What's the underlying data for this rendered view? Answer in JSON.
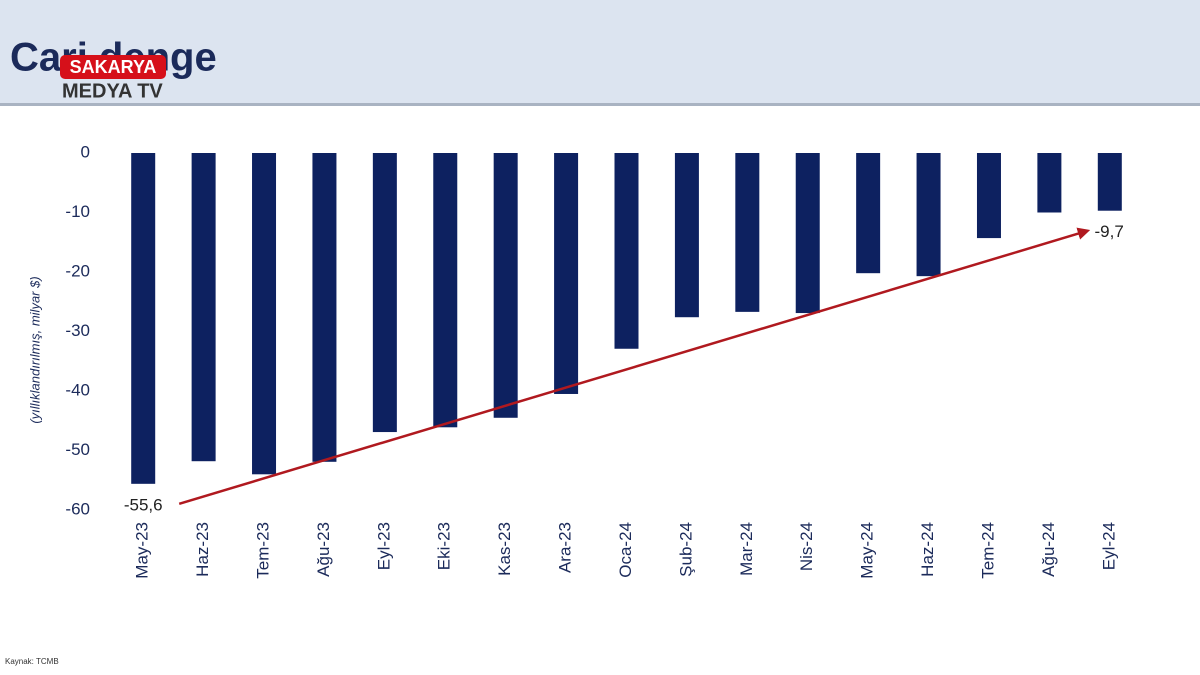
{
  "chart_data": {
    "type": "bar",
    "title": "Cari denge",
    "y_label": "(yıllıklandırılmış, milyar $)",
    "source": "Kaynak: TCMB",
    "categories": [
      "May-23",
      "Haz-23",
      "Tem-23",
      "Ağu-23",
      "Eyl-23",
      "Eki-23",
      "Kas-23",
      "Ara-23",
      "Oca-24",
      "Şub-24",
      "Mar-24",
      "Nis-24",
      "May-24",
      "Haz-24",
      "Tem-24",
      "Ağu-24",
      "Eyl-24"
    ],
    "values": [
      -55.6,
      -51.8,
      -54.0,
      -51.9,
      -46.9,
      -46.1,
      -44.5,
      -40.5,
      -32.9,
      -27.6,
      -26.7,
      -26.9,
      -20.2,
      -20.7,
      -14.3,
      -10.0,
      -9.7
    ],
    "value_labels": [
      "-55,6",
      null,
      null,
      null,
      null,
      null,
      null,
      null,
      null,
      null,
      null,
      null,
      null,
      null,
      null,
      null,
      "-9,7"
    ],
    "color": "#0d2160",
    "arrow_color": "#b0191f",
    "ylim": [
      -60,
      0
    ],
    "yticks": [
      -60,
      -50,
      -40,
      -30,
      -20,
      -10,
      0
    ],
    "grid": false
  },
  "logo": {
    "line1": "SAKARYA",
    "line2": "MEDYA TV"
  }
}
